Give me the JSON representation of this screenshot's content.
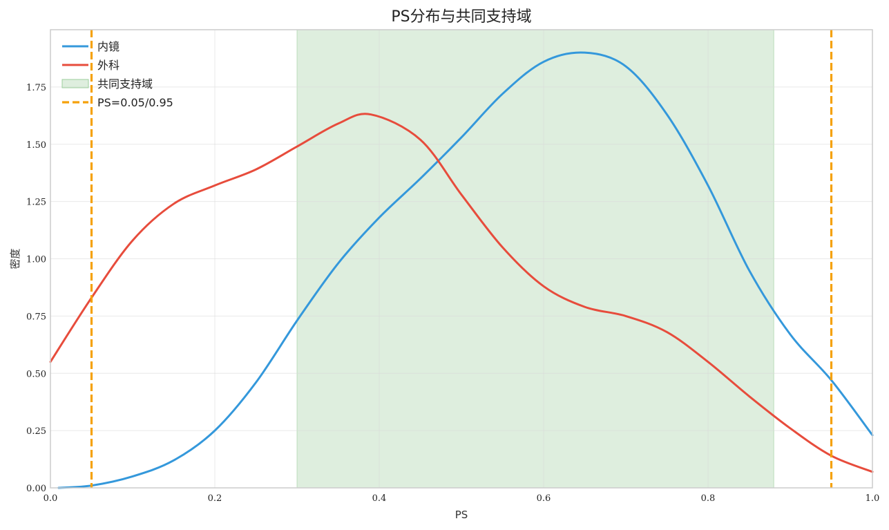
{
  "chart_data": {
    "type": "line",
    "title": "PS分布与共同支持域",
    "xlabel": "PS",
    "ylabel": "密度",
    "xlim": [
      0,
      1.0
    ],
    "ylim": [
      0,
      2.0
    ],
    "xticks": [
      0.0,
      0.2,
      0.4,
      0.6,
      0.8,
      1.0
    ],
    "xtick_labels": [
      "0.0",
      "0.2",
      "0.4",
      "0.6",
      "0.8",
      "1.0"
    ],
    "yticks": [
      0.0,
      0.25,
      0.5,
      0.75,
      1.0,
      1.25,
      1.5,
      1.75
    ],
    "ytick_labels": [
      "0.00",
      "0.25",
      "0.50",
      "0.75",
      "1.00",
      "1.25",
      "1.50",
      "1.75"
    ],
    "grid": true,
    "legend_position": "top-left",
    "series": [
      {
        "name": "内镜",
        "color": "#3498db",
        "x": [
          0.01,
          0.05,
          0.1,
          0.15,
          0.2,
          0.25,
          0.3,
          0.35,
          0.4,
          0.45,
          0.5,
          0.55,
          0.6,
          0.65,
          0.7,
          0.75,
          0.8,
          0.85,
          0.9,
          0.95,
          1.0
        ],
        "y": [
          0.0,
          0.01,
          0.05,
          0.12,
          0.25,
          0.46,
          0.73,
          0.98,
          1.18,
          1.35,
          1.53,
          1.72,
          1.86,
          1.9,
          1.84,
          1.63,
          1.32,
          0.95,
          0.67,
          0.47,
          0.23
        ]
      },
      {
        "name": "外科",
        "color": "#e74c3c",
        "x": [
          0.0,
          0.05,
          0.1,
          0.15,
          0.2,
          0.25,
          0.3,
          0.35,
          0.39,
          0.45,
          0.5,
          0.55,
          0.6,
          0.65,
          0.7,
          0.75,
          0.8,
          0.85,
          0.9,
          0.95,
          1.0
        ],
        "y": [
          0.55,
          0.83,
          1.08,
          1.24,
          1.32,
          1.39,
          1.49,
          1.59,
          1.63,
          1.52,
          1.28,
          1.05,
          0.88,
          0.79,
          0.75,
          0.68,
          0.55,
          0.4,
          0.26,
          0.14,
          0.07
        ]
      }
    ],
    "common_support": {
      "name": "共同支持域",
      "range": [
        0.3,
        0.88
      ],
      "color": "#c8e3c8"
    },
    "thresholds": {
      "name": "PS=0.05/0.95",
      "values": [
        0.05,
        0.95
      ],
      "color": "#f5a10a"
    }
  }
}
